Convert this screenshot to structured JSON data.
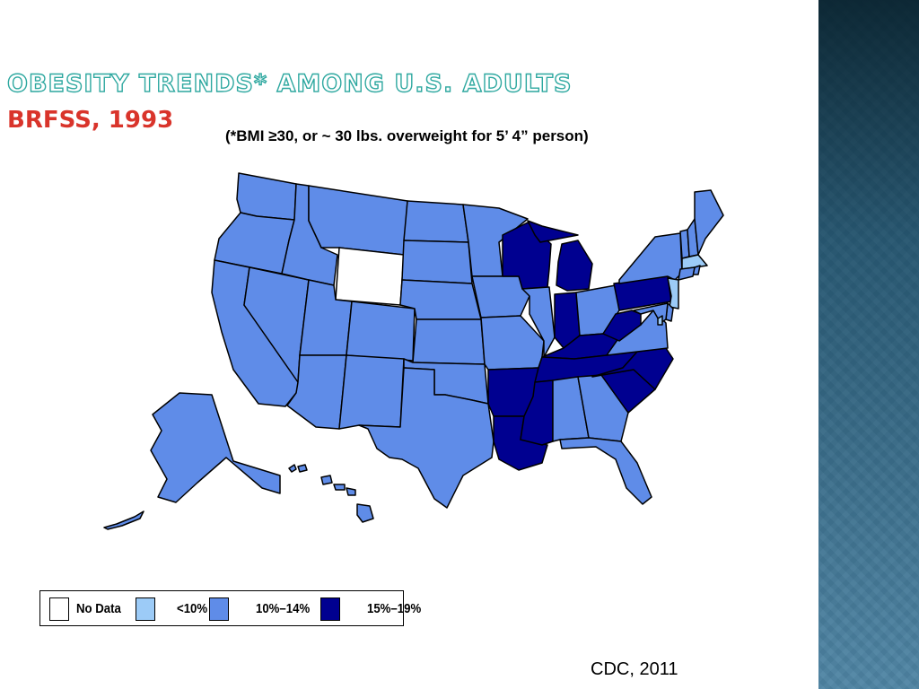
{
  "slide": {
    "title": "Obesity Trends* Among U.S. Adults",
    "subtitle": "BRFSS, 1993",
    "note": "(*BMI ≥30, or ~ 30 lbs. overweight for 5’ 4” person)",
    "source": "CDC, 2011"
  },
  "colors": {
    "no_data": "#ffffff",
    "lt10": "#9ccbf7",
    "p10_14": "#5f8ce8",
    "p15_19": "#000090",
    "title_stroke": "#2ea8a0",
    "subtitle": "#d9342b"
  },
  "legend": {
    "items": [
      {
        "label": "No Data",
        "category": "no_data"
      },
      {
        "label": "<10%",
        "category": "lt10"
      },
      {
        "label": "10%–14%",
        "category": "p10_14"
      },
      {
        "label": "15%–19%",
        "category": "p15_19"
      }
    ]
  },
  "map": {
    "states": {
      "WA": "p10_14",
      "OR": "p10_14",
      "CA": "p10_14",
      "NV": "p10_14",
      "ID": "p10_14",
      "MT": "p10_14",
      "WY": "no_data",
      "UT": "p10_14",
      "CO": "p10_14",
      "AZ": "p10_14",
      "NM": "p10_14",
      "ND": "p10_14",
      "SD": "p10_14",
      "NE": "p10_14",
      "KS": "p10_14",
      "OK": "p10_14",
      "TX": "p10_14",
      "MN": "p10_14",
      "IA": "p10_14",
      "MO": "p10_14",
      "AR": "p15_19",
      "LA": "p15_19",
      "WI": "p15_19",
      "IL": "p10_14",
      "MI": "p15_19",
      "IN": "p15_19",
      "OH": "p10_14",
      "KY": "p15_19",
      "TN": "p15_19",
      "MS": "p15_19",
      "AL": "p10_14",
      "GA": "p10_14",
      "FL": "p10_14",
      "SC": "p15_19",
      "NC": "p15_19",
      "VA": "p10_14",
      "WV": "p15_19",
      "PA": "p15_19",
      "NY": "p10_14",
      "VT": "p10_14",
      "NH": "p10_14",
      "ME": "p10_14",
      "MA": "lt10",
      "RI": "p10_14",
      "CT": "p10_14",
      "NJ": "lt10",
      "DE": "p10_14",
      "MD": "p10_14",
      "DC": "lt10",
      "AK": "p10_14",
      "HI": "p10_14"
    }
  }
}
